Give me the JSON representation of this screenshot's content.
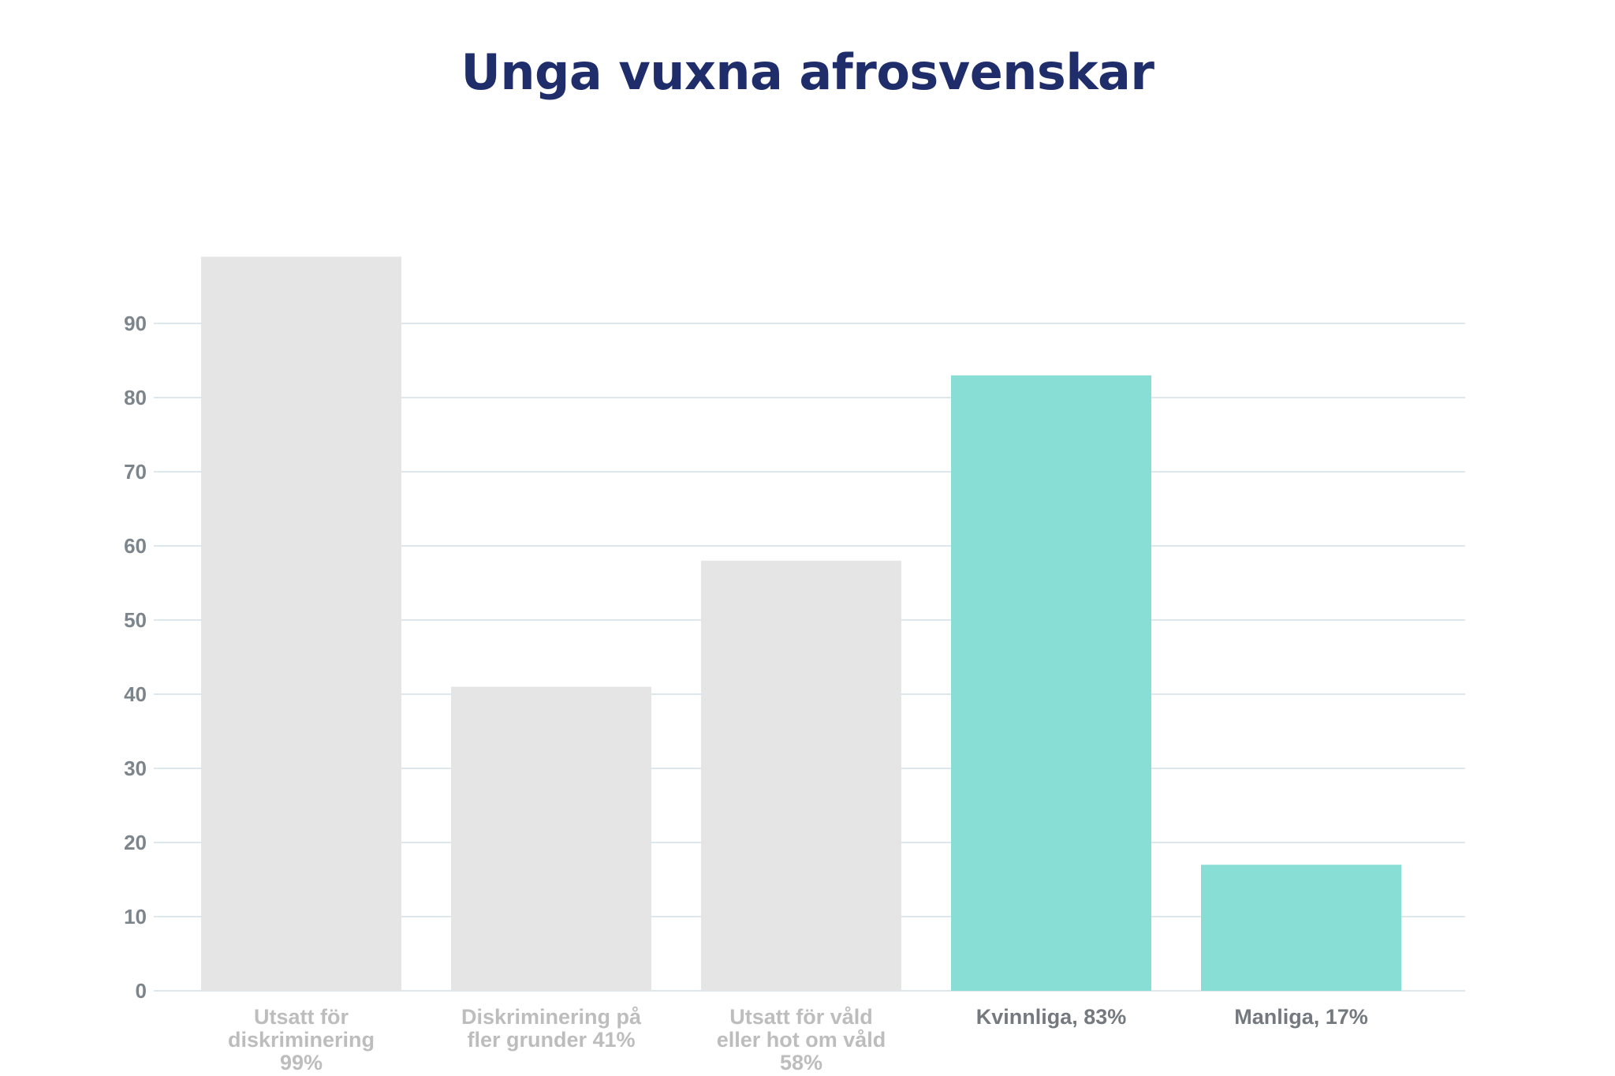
{
  "colors": {
    "title": "#1f2d6b",
    "grid": "#dde7ee",
    "axis_text": "#7d858c",
    "muted_bar": "#e5e5e5",
    "muted_label": "#bdbdbd",
    "accent_bar": "#88ddd4",
    "accent_label": "#73797f"
  },
  "chart_data": {
    "type": "bar",
    "title": "Unga vuxna afrosvenskar",
    "xlabel": "",
    "ylabel": "",
    "ylim": [
      0,
      100
    ],
    "yticks": [
      "0",
      "10",
      "20",
      "30",
      "40",
      "50",
      "60",
      "70",
      "80",
      "90"
    ],
    "grid": true,
    "categories": [
      {
        "lines": [
          "Utsatt för",
          "diskriminering",
          "99%"
        ],
        "highlight": false
      },
      {
        "lines": [
          "Diskriminering på",
          "fler grunder 41%"
        ],
        "highlight": false
      },
      {
        "lines": [
          "Utsatt för våld",
          "eller hot om våld",
          "58%"
        ],
        "highlight": false
      },
      {
        "lines": [
          "Kvinnliga, 83%"
        ],
        "highlight": true
      },
      {
        "lines": [
          "Manliga, 17%"
        ],
        "highlight": true
      }
    ],
    "values": [
      99,
      41,
      58,
      83,
      17
    ]
  }
}
